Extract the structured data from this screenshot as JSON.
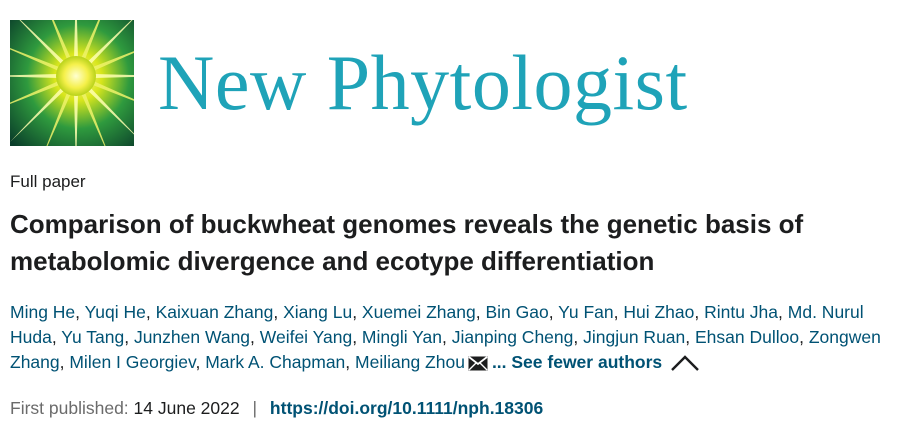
{
  "journal": {
    "name": "New Phytologist",
    "brand_color": "#1fa3b8",
    "logo_icon": "sunburst-logo-icon"
  },
  "article": {
    "type": "Full paper",
    "title": "Comparison of buckwheat genomes reveals the genetic basis of metabolomic divergence and ecotype differentiation",
    "authors": [
      "Ming He",
      "Yuqi He",
      "Kaixuan Zhang",
      "Xiang Lu",
      "Xuemei Zhang",
      "Bin Gao",
      "Yu Fan",
      "Hui Zhao",
      "Rintu Jha",
      "Md. Nurul Huda",
      "Yu Tang",
      "Junzhen Wang",
      "Weifei Yang",
      "Mingli Yan",
      "Jianping Cheng",
      "Jingjun Ruan",
      "Ehsan Dulloo",
      "Zongwen Zhang",
      "Milen I Georgiev",
      "Mark A. Chapman",
      "Meiliang Zhou"
    ],
    "corresponding_icon": "envelope-icon",
    "see_fewer_label": "... See fewer authors",
    "collapse_icon": "chevron-up-icon",
    "published_label": "First published:",
    "published_date": "14 June 2022",
    "separator": "|",
    "doi": "https://doi.org/10.1111/nph.18306",
    "link_color": "#005274"
  }
}
